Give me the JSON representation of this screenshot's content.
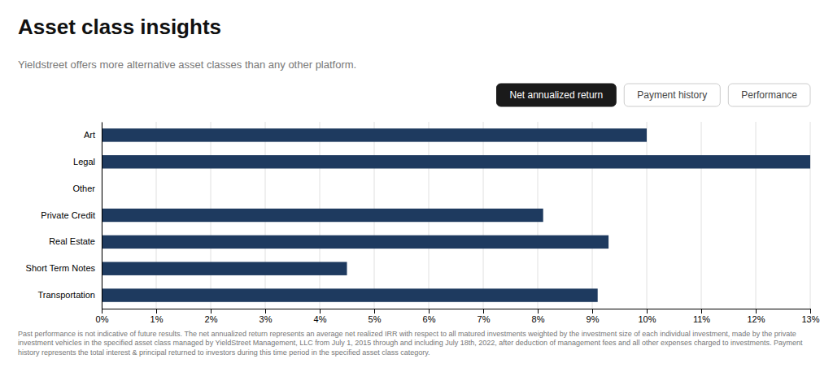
{
  "chart_data": {
    "type": "bar",
    "orientation": "horizontal",
    "title": "Asset class insights",
    "subtitle": "Yieldstreet offers more alternative asset classes than any other platform.",
    "buttons": [
      "Net annualized return",
      "Payment history",
      "Performance"
    ],
    "footnote": "Past performance is not indicative of future results. The net annualized return represents an average net realized IRR with respect to all matured investments weighted by the investment size of each individual investment, made by the private investment vehicles in the specified asset class managed by YieldStreet Management, LLC from July 1, 2015 through and including July 18th, 2022, after deduction of management fees and all other expenses charged to investments. Payment history represents the total interest & principal returned to investors during this time period in the specified asset class category.",
    "categories": [
      "Art",
      "Legal",
      "Other",
      "Private Credit",
      "Real Estate",
      "Short Term Notes",
      "Transportation"
    ],
    "values": [
      10.0,
      13.0,
      0.0,
      8.1,
      9.3,
      4.5,
      9.1
    ],
    "color": "#1e3a5f",
    "xlim": [
      0,
      13
    ],
    "xticks": [
      {
        "value": 0,
        "label": "0%"
      },
      {
        "value": 1,
        "label": "1%"
      },
      {
        "value": 2,
        "label": "2%"
      },
      {
        "value": 3,
        "label": "3%"
      },
      {
        "value": 4,
        "label": "4%"
      },
      {
        "value": 5,
        "label": "5%"
      },
      {
        "value": 6,
        "label": "6%"
      },
      {
        "value": 7,
        "label": "7%"
      },
      {
        "value": 8,
        "label": "8%"
      },
      {
        "value": 9,
        "label": "9%"
      },
      {
        "value": 10,
        "label": "10%"
      },
      {
        "value": 11,
        "label": "11%"
      },
      {
        "value": 12,
        "label": "12%"
      },
      {
        "value": 13,
        "label": "13%"
      }
    ],
    "grid": true
  }
}
